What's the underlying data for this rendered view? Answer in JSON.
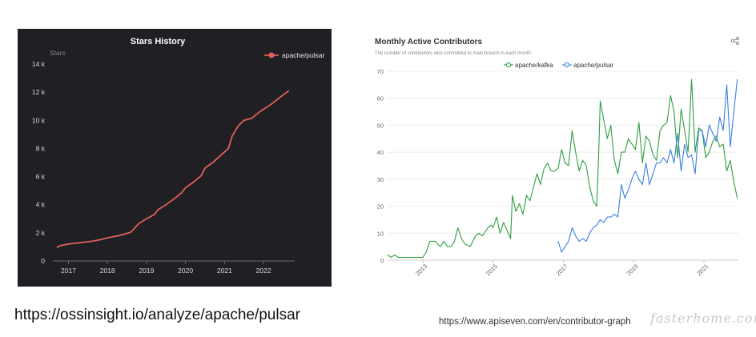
{
  "captions": {
    "left": "https://ossinsight.io/analyze/apache/pulsar",
    "right": "https://www.apiseven.com/en/contributor-graph",
    "watermark": "fasterhome.com"
  },
  "chart_data": [
    {
      "type": "line",
      "title": "Stars History",
      "ylabel": "Stars",
      "xlabel": "",
      "x_ticks": [
        "2017",
        "2018",
        "2019",
        "2020",
        "2021",
        "2022"
      ],
      "y_ticks": [
        "0",
        "2 k",
        "4 k",
        "6 k",
        "8 k",
        "10 k",
        "12 k",
        "14 k"
      ],
      "ylim": [
        0,
        14000
      ],
      "xlim": [
        2016.6,
        2022.8
      ],
      "grid": false,
      "legend": "top-right",
      "background": "#1f1f24",
      "series": [
        {
          "name": "apache/pulsar",
          "color": "#e0605a",
          "x": [
            2016.7,
            2016.8,
            2017.0,
            2017.3,
            2017.6,
            2017.8,
            2018.0,
            2018.3,
            2018.6,
            2018.8,
            2019.0,
            2019.2,
            2019.3,
            2019.5,
            2019.7,
            2019.9,
            2020.0,
            2020.2,
            2020.4,
            2020.5,
            2020.7,
            2020.9,
            2021.1,
            2021.2,
            2021.35,
            2021.5,
            2021.7,
            2021.9,
            2022.2,
            2022.5,
            2022.65
          ],
          "y": [
            950,
            1100,
            1200,
            1300,
            1400,
            1500,
            1650,
            1800,
            2050,
            2650,
            3000,
            3300,
            3650,
            4000,
            4400,
            4850,
            5200,
            5600,
            6050,
            6600,
            7000,
            7500,
            8000,
            8900,
            9600,
            10000,
            10150,
            10600,
            11150,
            11800,
            12100
          ]
        }
      ]
    },
    {
      "type": "line",
      "title": "Monthly Active Contributors",
      "subtitle": "The number of contributors who committed to main branch in each month",
      "xlabel": "",
      "ylabel": "",
      "x_ticks": [
        "2013",
        "2015",
        "2017",
        "2019",
        "2021"
      ],
      "y_ticks": [
        "0",
        "10",
        "20",
        "30",
        "40",
        "50",
        "60",
        "70"
      ],
      "ylim": [
        0,
        70
      ],
      "xlim": [
        2012.0,
        2021.98
      ],
      "grid": true,
      "legend": "top-center",
      "series": [
        {
          "name": "apache/kafka",
          "color": "#2e9e42",
          "x": [
            2012.0,
            2012.1,
            2012.2,
            2012.3,
            2012.5,
            2012.7,
            2012.9,
            2013.0,
            2013.1,
            2013.2,
            2013.35,
            2013.5,
            2013.6,
            2013.7,
            2013.8,
            2013.9,
            2014.0,
            2014.1,
            2014.2,
            2014.35,
            2014.5,
            2014.6,
            2014.7,
            2014.85,
            2014.95,
            2015.0,
            2015.1,
            2015.2,
            2015.3,
            2015.4,
            2015.5,
            2015.55,
            2015.65,
            2015.75,
            2015.85,
            2015.95,
            2016.05,
            2016.15,
            2016.25,
            2016.35,
            2016.45,
            2016.55,
            2016.65,
            2016.75,
            2016.85,
            2016.95,
            2017.05,
            2017.15,
            2017.25,
            2017.35,
            2017.45,
            2017.55,
            2017.65,
            2017.75,
            2017.85,
            2017.95,
            2018.0,
            2018.05,
            2018.15,
            2018.25,
            2018.35,
            2018.45,
            2018.55,
            2018.65,
            2018.75,
            2018.85,
            2018.95,
            2019.05,
            2019.15,
            2019.25,
            2019.35,
            2019.45,
            2019.55,
            2019.65,
            2019.75,
            2019.85,
            2019.95,
            2020.05,
            2020.15,
            2020.25,
            2020.35,
            2020.45,
            2020.55,
            2020.65,
            2020.75,
            2020.85,
            2020.95,
            2021.05,
            2021.15,
            2021.25,
            2021.35,
            2021.45,
            2021.55,
            2021.65,
            2021.75,
            2021.85,
            2021.95
          ],
          "y": [
            2,
            1,
            2,
            1,
            1,
            1,
            1,
            1,
            3,
            7,
            7,
            5,
            7,
            5,
            5,
            7,
            12,
            8,
            6,
            5,
            9,
            10,
            9,
            12,
            13,
            12,
            16,
            10,
            14,
            11,
            8,
            24,
            18,
            21,
            17,
            24,
            22,
            27,
            32,
            28,
            34,
            36,
            33,
            33,
            34,
            41,
            36,
            35,
            48,
            40,
            33,
            37,
            35,
            27,
            22,
            20,
            37,
            59,
            52,
            45,
            50,
            37,
            32,
            40,
            40,
            45,
            43,
            41,
            51,
            36,
            46,
            44,
            39,
            37,
            48,
            50,
            51,
            61,
            55,
            38,
            56,
            48,
            40,
            67,
            40,
            49,
            48,
            38,
            40,
            44,
            46,
            42,
            43,
            33,
            37,
            29,
            23
          ]
        },
        {
          "name": "apache/pulsar",
          "color": "#3b7fe0",
          "x": [
            2016.85,
            2016.95,
            2017.05,
            2017.15,
            2017.25,
            2017.35,
            2017.45,
            2017.55,
            2017.65,
            2017.75,
            2017.85,
            2017.95,
            2018.05,
            2018.15,
            2018.25,
            2018.35,
            2018.45,
            2018.55,
            2018.65,
            2018.75,
            2018.85,
            2018.95,
            2019.05,
            2019.15,
            2019.25,
            2019.35,
            2019.45,
            2019.55,
            2019.65,
            2019.75,
            2019.85,
            2019.95,
            2020.05,
            2020.15,
            2020.25,
            2020.35,
            2020.45,
            2020.55,
            2020.65,
            2020.75,
            2020.85,
            2020.95,
            2021.05,
            2021.15,
            2021.25,
            2021.35,
            2021.45,
            2021.55,
            2021.65,
            2021.75,
            2021.85,
            2021.95
          ],
          "y": [
            7,
            3,
            5,
            7,
            12,
            9,
            7,
            8,
            7,
            10,
            12,
            13,
            15,
            14,
            16,
            16,
            17,
            16,
            28,
            23,
            26,
            30,
            33,
            30,
            28,
            36,
            28,
            32,
            36,
            36,
            38,
            36,
            41,
            36,
            47,
            33,
            43,
            38,
            39,
            32,
            48,
            48,
            42,
            50,
            47,
            44,
            53,
            48,
            65,
            42,
            55,
            67
          ]
        }
      ]
    }
  ]
}
